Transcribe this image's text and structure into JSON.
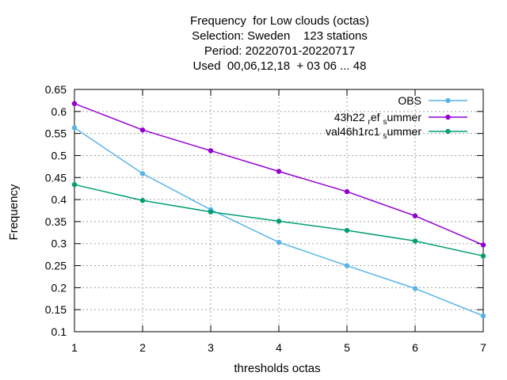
{
  "chart_data": {
    "type": "line",
    "title_lines": [
      "Frequency  for Low clouds (octas)",
      "Selection: Sweden    123 stations",
      "Period: 20220701-20220717",
      "Used  00,06,12,18  + 03 06 ... 48"
    ],
    "xlabel": "thresholds octas",
    "ylabel": "Frequency",
    "x": [
      1,
      2,
      3,
      4,
      5,
      6,
      7
    ],
    "xlim": [
      1,
      7
    ],
    "ylim": [
      0.1,
      0.65
    ],
    "yticks": [
      "0.1",
      "0.15",
      "0.2",
      "0.25",
      "0.3",
      "0.35",
      "0.4",
      "0.45",
      "0.5",
      "0.55",
      "0.6",
      "0.65"
    ],
    "xticks": [
      "1",
      "2",
      "3",
      "4",
      "5",
      "6",
      "7"
    ],
    "grid": true,
    "legend_position": "top-right",
    "series": [
      {
        "name": "OBS",
        "name_main": "OBS",
        "name_sub": "",
        "name_tail": "",
        "color": "#56b4e9",
        "values": [
          0.563,
          0.459,
          0.377,
          0.303,
          0.25,
          0.198,
          0.136
        ]
      },
      {
        "name": "43h22_ref_summer",
        "name_main": "43h22",
        "name_sub": "ref",
        "name_tail": "summer",
        "color": "#9400d3",
        "values": [
          0.618,
          0.558,
          0.511,
          0.464,
          0.418,
          0.363,
          0.297
        ]
      },
      {
        "name": "val46h1rc1_summer",
        "name_main": "val46h1rc1",
        "name_sub": "",
        "name_tail": "summer",
        "color": "#009e73",
        "values": [
          0.434,
          0.398,
          0.372,
          0.351,
          0.33,
          0.306,
          0.272
        ]
      }
    ]
  }
}
